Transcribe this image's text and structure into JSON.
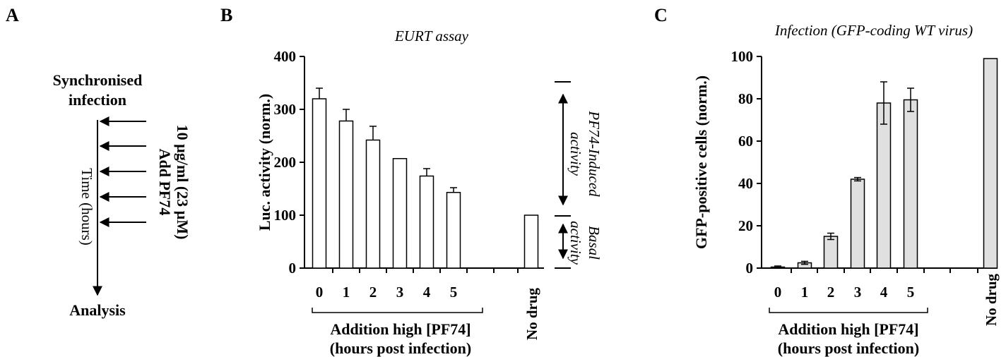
{
  "panels": {
    "a": "A",
    "b": "B",
    "c": "C"
  },
  "schematic": {
    "top_label_line1": "Synchronised",
    "top_label_line2": "infection",
    "time_label": "Time (hours)",
    "add_line1": "Add PF74",
    "add_line2": "10 µg/ml (23 µM)",
    "bottom_label": "Analysis"
  },
  "annotations": {
    "induced_line1": "PF74-Induced",
    "induced_line2": "activity",
    "basal_line1": "Basal",
    "basal_line2": "activity"
  },
  "chart_data": [
    {
      "type": "bar",
      "title": "EURT assay",
      "ylabel": "Luc. activity (norm.)",
      "xlabel_line1": "Addition high [PF74]",
      "xlabel_line2": "(hours post infection)",
      "categories": [
        "0",
        "1",
        "2",
        "3",
        "4",
        "5",
        "No drug"
      ],
      "values": [
        320,
        278,
        242,
        207,
        174,
        143,
        100
      ],
      "errors": [
        20,
        22,
        26,
        0,
        14,
        9,
        0
      ],
      "ylim": [
        0,
        400
      ],
      "yticks": [
        0,
        100,
        200,
        300,
        400
      ],
      "bar_color": "#ffffff"
    },
    {
      "type": "bar",
      "title": "Infection (GFP-coding WT virus)",
      "ylabel": "GFP-positive cells (norm.)",
      "xlabel_line1": "Addition high [PF74]",
      "xlabel_line2": "(hours post infection)",
      "categories": [
        "0",
        "1",
        "2",
        "3",
        "4",
        "5",
        "No drug"
      ],
      "values": [
        0.5,
        2.5,
        15,
        42,
        78,
        79.5,
        99
      ],
      "errors": [
        0.5,
        0.7,
        1.5,
        0.8,
        10,
        5.5,
        0
      ],
      "ylim": [
        0,
        100
      ],
      "yticks": [
        0,
        20,
        40,
        60,
        80,
        100
      ],
      "bar_color": "#e0e0e0"
    }
  ]
}
